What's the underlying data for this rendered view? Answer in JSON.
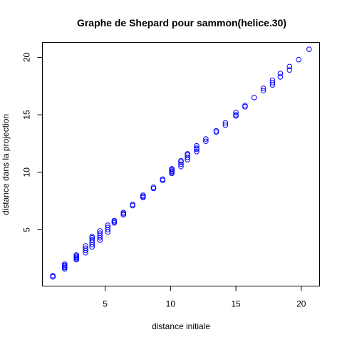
{
  "chart_data": {
    "type": "scatter",
    "title": "Graphe de Shepard pour sammon(helice.30)",
    "xlabel": "distance initiale",
    "ylabel": "distance dans la projection",
    "xlim": [
      0.2,
      21.4
    ],
    "ylim": [
      0.1,
      21.3
    ],
    "xticks": [
      5,
      10,
      15,
      20
    ],
    "yticks": [
      5,
      10,
      15,
      20
    ],
    "grid": false,
    "legend": "none",
    "marker_color": "#0000ff",
    "marker": "open-circle",
    "points": [
      [
        1.0,
        0.9
      ],
      [
        1.0,
        1.0
      ],
      [
        1.9,
        1.6
      ],
      [
        1.9,
        1.7
      ],
      [
        1.9,
        1.8
      ],
      [
        1.9,
        1.9
      ],
      [
        1.9,
        2.0
      ],
      [
        2.8,
        2.4
      ],
      [
        2.8,
        2.5
      ],
      [
        2.8,
        2.6
      ],
      [
        2.8,
        2.7
      ],
      [
        2.8,
        2.8
      ],
      [
        3.5,
        3.0
      ],
      [
        3.5,
        3.2
      ],
      [
        3.5,
        3.4
      ],
      [
        3.5,
        3.6
      ],
      [
        4.0,
        3.5
      ],
      [
        4.0,
        3.7
      ],
      [
        4.0,
        3.9
      ],
      [
        4.0,
        4.1
      ],
      [
        4.0,
        4.3
      ],
      [
        4.0,
        4.4
      ],
      [
        4.6,
        4.1
      ],
      [
        4.6,
        4.3
      ],
      [
        4.6,
        4.5
      ],
      [
        4.6,
        4.7
      ],
      [
        4.6,
        4.9
      ],
      [
        5.2,
        4.8
      ],
      [
        5.2,
        5.0
      ],
      [
        5.2,
        5.2
      ],
      [
        5.2,
        5.4
      ],
      [
        5.7,
        5.6
      ],
      [
        5.7,
        5.7
      ],
      [
        5.7,
        5.8
      ],
      [
        6.4,
        6.3
      ],
      [
        6.4,
        6.4
      ],
      [
        6.4,
        6.5
      ],
      [
        7.1,
        7.1
      ],
      [
        7.1,
        7.2
      ],
      [
        7.9,
        7.8
      ],
      [
        7.9,
        7.9
      ],
      [
        7.9,
        8.0
      ],
      [
        8.7,
        8.6
      ],
      [
        8.7,
        8.7
      ],
      [
        9.4,
        9.3
      ],
      [
        9.4,
        9.4
      ],
      [
        10.1,
        9.9
      ],
      [
        10.1,
        10.0
      ],
      [
        10.1,
        10.1
      ],
      [
        10.1,
        10.2
      ],
      [
        10.1,
        10.3
      ],
      [
        10.8,
        10.5
      ],
      [
        10.8,
        10.7
      ],
      [
        10.8,
        10.9
      ],
      [
        10.8,
        11.0
      ],
      [
        11.3,
        11.1
      ],
      [
        11.3,
        11.3
      ],
      [
        11.3,
        11.5
      ],
      [
        11.3,
        11.6
      ],
      [
        12.0,
        11.8
      ],
      [
        12.0,
        12.0
      ],
      [
        12.0,
        12.1
      ],
      [
        12.0,
        12.3
      ],
      [
        12.7,
        12.7
      ],
      [
        12.7,
        12.9
      ],
      [
        13.5,
        13.5
      ],
      [
        13.5,
        13.6
      ],
      [
        14.2,
        14.1
      ],
      [
        14.2,
        14.3
      ],
      [
        15.0,
        14.9
      ],
      [
        15.0,
        15.0
      ],
      [
        15.0,
        15.2
      ],
      [
        15.7,
        15.7
      ],
      [
        15.7,
        15.8
      ],
      [
        16.4,
        16.5
      ],
      [
        17.1,
        17.1
      ],
      [
        17.1,
        17.3
      ],
      [
        17.8,
        17.6
      ],
      [
        17.8,
        17.8
      ],
      [
        17.8,
        18.0
      ],
      [
        18.4,
        18.3
      ],
      [
        18.4,
        18.6
      ],
      [
        19.1,
        18.9
      ],
      [
        19.1,
        19.2
      ],
      [
        19.8,
        19.8
      ],
      [
        20.6,
        20.7
      ]
    ]
  }
}
